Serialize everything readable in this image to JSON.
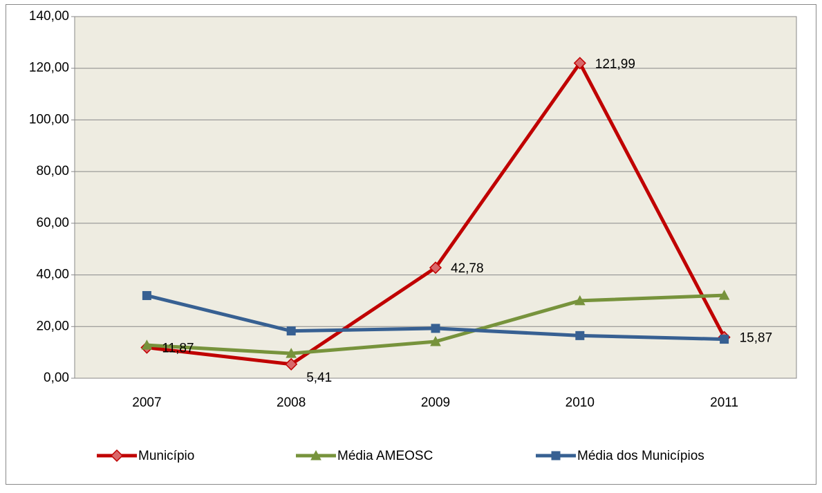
{
  "chart_data": {
    "type": "line",
    "categories": [
      "2007",
      "2008",
      "2009",
      "2010",
      "2011"
    ],
    "series": [
      {
        "name": "Município",
        "color": "#c00000",
        "marker": "diamond",
        "values": [
          11.87,
          5.41,
          42.78,
          121.99,
          15.87
        ],
        "value_labels": [
          "11,87",
          "5,41",
          "42,78",
          "121,99",
          "15,87"
        ]
      },
      {
        "name": "Média AMEOSC",
        "color": "#77933c",
        "marker": "triangle",
        "values": [
          12.8,
          9.6,
          14.2,
          30.0,
          32.1
        ]
      },
      {
        "name": "Média dos Municípios",
        "color": "#376092",
        "marker": "square",
        "values": [
          32.0,
          18.3,
          19.3,
          16.5,
          15.1
        ]
      }
    ],
    "ylim": [
      0,
      140
    ],
    "yticks": [
      {
        "value": 0,
        "label": "0,00"
      },
      {
        "value": 20,
        "label": "20,00"
      },
      {
        "value": 40,
        "label": "40,00"
      },
      {
        "value": 60,
        "label": "60,00"
      },
      {
        "value": 80,
        "label": "80,00"
      },
      {
        "value": 100,
        "label": "100,00"
      },
      {
        "value": 120,
        "label": "120,00"
      },
      {
        "value": 140,
        "label": "140,00"
      }
    ],
    "grid": true,
    "legend": "bottom"
  }
}
